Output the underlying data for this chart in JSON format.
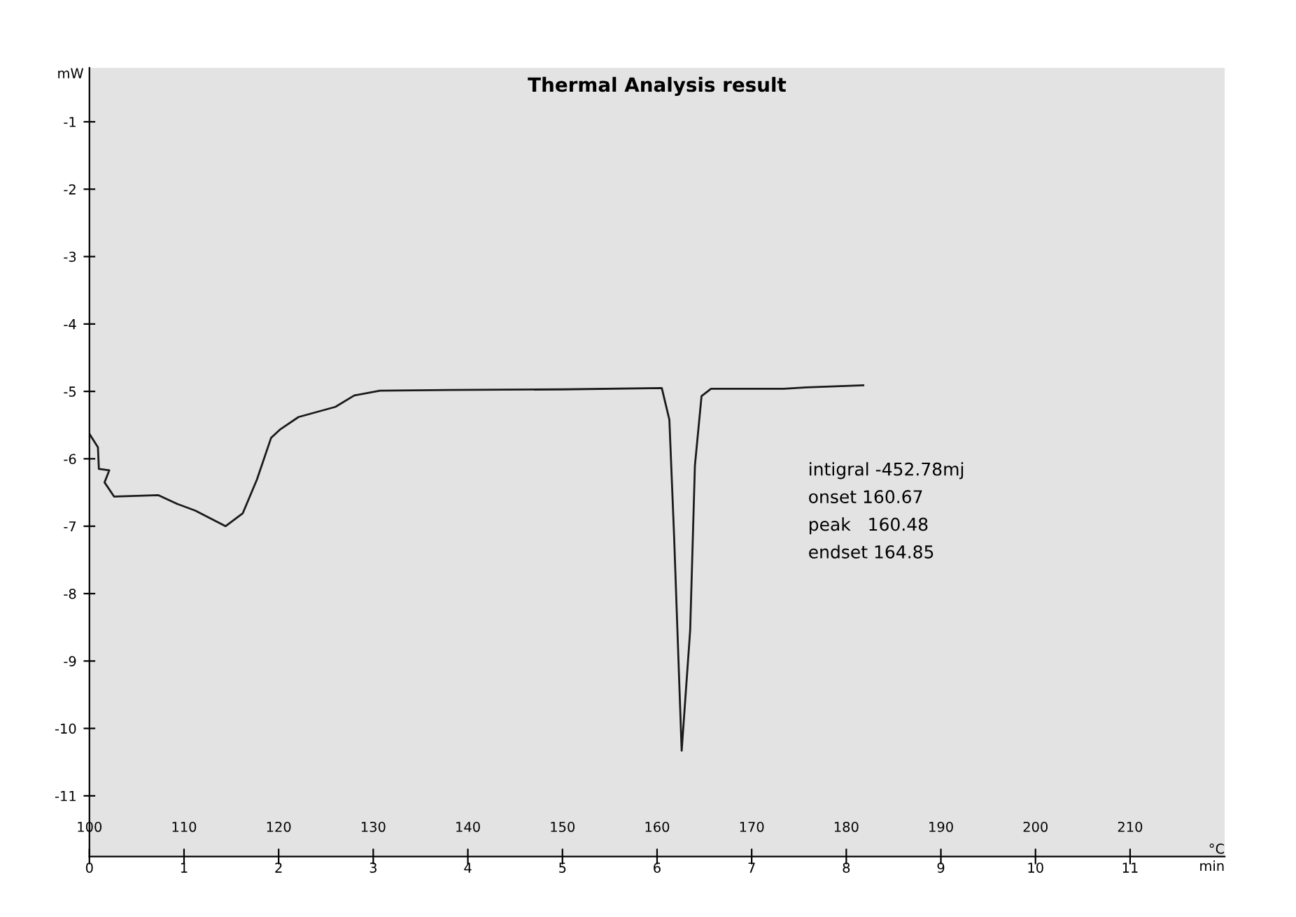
{
  "chart_data": {
    "type": "line",
    "title": "Thermal Analysis result",
    "xlabel": "°C",
    "x2label": "min",
    "ylabel": "mW",
    "x": [
      100,
      100.9,
      101.0,
      102.1,
      101.6,
      102.6,
      107.3,
      109.3,
      111.2,
      114.4,
      116.2,
      117.7,
      119.2,
      120.2,
      122.1,
      126.0,
      128.0,
      130.7,
      137.9,
      150,
      160.5,
      161.3,
      161.8,
      162.6,
      163.5,
      164.0,
      164.7,
      165.7,
      173.4,
      175.8,
      181.8
    ],
    "series": [
      {
        "color": "#1a1a1a",
        "values": [
          -5.63,
          -5.83,
          -6.15,
          -6.17,
          -6.35,
          -6.56,
          -6.54,
          -6.67,
          -6.77,
          -7.0,
          -6.81,
          -6.31,
          -5.69,
          -5.56,
          -5.38,
          -5.23,
          -5.06,
          -4.99,
          -4.98,
          -4.97,
          -4.95,
          -5.42,
          -7.15,
          -10.33,
          -8.54,
          -6.1,
          -5.07,
          -4.96,
          -4.96,
          -4.94,
          -4.91
        ]
      }
    ],
    "xlim": [
      100,
      220
    ],
    "xticks": [
      100,
      110,
      120,
      130,
      140,
      150,
      160,
      170,
      180,
      190,
      200,
      210
    ],
    "x2lim": [
      0,
      12
    ],
    "x2ticks": [
      0,
      1,
      2,
      3,
      4,
      5,
      6,
      7,
      8,
      9,
      10,
      11
    ],
    "ylim": [
      -11.9,
      -0.2
    ],
    "yticks": [
      -1,
      -2,
      -3,
      -4,
      -5,
      -6,
      -7,
      -8,
      -9,
      -10,
      -11
    ],
    "grid": false,
    "legend": false,
    "marker": "none",
    "line_style": "solid",
    "annotations": [
      "intigral -452.78mj",
      "onset 160.67",
      "peak   160.48",
      "endset 164.85"
    ]
  }
}
